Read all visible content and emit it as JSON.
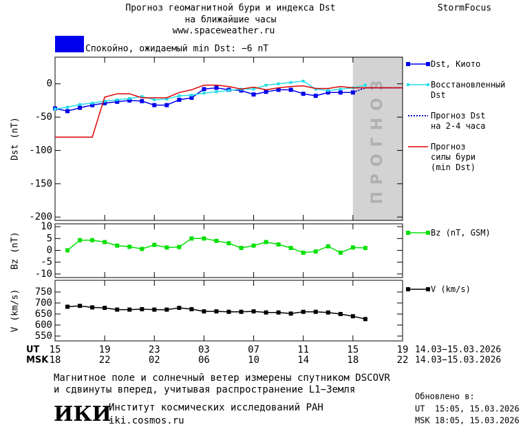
{
  "header": {
    "title": "Прогноз геомагнитной бури и индекса Dst",
    "subtitle": "на ближайшие часы",
    "url": "www.spaceweather.ru",
    "brand": "StormFocus",
    "status": "Спокойно, ожидаемый min Dst: −6 nT",
    "status_color": "#0000ee"
  },
  "chart_data": [
    {
      "type": "line",
      "ylabel": "Dst (nT)",
      "xlim": [
        15,
        43
      ],
      "xticks": [
        15,
        19,
        23,
        27,
        31,
        35,
        39,
        43
      ],
      "ylim": [
        -205,
        40
      ],
      "yticks": [
        0,
        -50,
        -100,
        -150,
        -200
      ],
      "forecast_xlim": [
        39,
        43
      ],
      "forecast_label": "ПРОГНОЗ",
      "series": [
        {
          "name": "Dst, Киото",
          "color": "#0000ee",
          "marker": "square",
          "style": "solid",
          "x": [
            15,
            16,
            17,
            18,
            19,
            20,
            21,
            22,
            23,
            24,
            25,
            26,
            27,
            28,
            29,
            30,
            31,
            32,
            33,
            34,
            35,
            36,
            37,
            38,
            39
          ],
          "values": [
            -37,
            -41,
            -36,
            -32,
            -29,
            -27,
            -25,
            -26,
            -32,
            -32,
            -24,
            -21,
            -8,
            -6,
            -9,
            -10,
            -16,
            -12,
            -9,
            -9,
            -15,
            -18,
            -13,
            -13,
            -13
          ]
        },
        {
          "name": "Восстановленный\nDst",
          "color": "#22dde8",
          "marker": "small-square",
          "style": "solid",
          "x": [
            15,
            16,
            17,
            18,
            19,
            20,
            21,
            22,
            23,
            24,
            25,
            26,
            27,
            28,
            29,
            30,
            31,
            32,
            33,
            34,
            35,
            36,
            37,
            38,
            39,
            40
          ],
          "values": [
            -38,
            -35,
            -31,
            -29,
            -26,
            -24,
            -22,
            -19,
            -24,
            -23,
            -18,
            -17,
            -14,
            -12,
            -10,
            -8,
            -8,
            -2,
            0,
            2,
            4,
            -8,
            -10,
            -8,
            -6,
            -2
          ]
        },
        {
          "name": "Прогноз Dst\nна 2-4 часа",
          "color": "#0000cc",
          "marker": "none",
          "style": "dotted",
          "x": [
            39,
            40,
            43
          ],
          "values": [
            -13,
            -6,
            -6
          ]
        },
        {
          "name": "Прогноз\nсилы бури\n(min Dst)",
          "color": "#dd0000",
          "marker": "none",
          "style": "solid",
          "x": [
            15,
            16,
            17,
            18,
            19,
            20,
            21,
            22,
            23,
            24,
            25,
            26,
            27,
            28,
            29,
            30,
            31,
            32,
            33,
            34,
            35,
            36,
            37,
            38,
            39,
            40,
            41,
            42,
            43
          ],
          "values": [
            -80,
            -80,
            -80,
            -80,
            -20,
            -15,
            -15,
            -21,
            -21,
            -21,
            -13,
            -9,
            -2,
            -2,
            -4,
            -8,
            -5,
            -9,
            -6,
            -4,
            -3,
            -7,
            -7,
            -4,
            -6,
            -6,
            -6,
            -6,
            -6
          ]
        }
      ]
    },
    {
      "type": "line",
      "ylabel": "Bz (nT)",
      "xlim": [
        15,
        43
      ],
      "xticks": [
        15,
        19,
        23,
        27,
        31,
        35,
        39,
        43
      ],
      "ylim": [
        -11.5,
        11.2
      ],
      "yticks": [
        10,
        5,
        0,
        -5,
        -10
      ],
      "series": [
        {
          "name": "Bz (nT, GSM)",
          "color": "#00e000",
          "marker": "square",
          "style": "solid",
          "x": [
            16,
            17,
            18,
            19,
            20,
            21,
            22,
            23,
            24,
            25,
            26,
            27,
            28,
            29,
            30,
            31,
            32,
            33,
            34,
            35,
            36,
            37,
            38,
            39,
            40
          ],
          "values": [
            0,
            4.3,
            4.3,
            3.5,
            2,
            1.5,
            0.6,
            2.3,
            1.2,
            1.4,
            5,
            5,
            4,
            3,
            1,
            2,
            3.5,
            2.5,
            1,
            -1,
            -0.5,
            1.7,
            -1,
            1.2,
            1
          ]
        }
      ]
    },
    {
      "type": "line",
      "ylabel": "V (km/s)",
      "xlim": [
        15,
        43
      ],
      "xticks": [
        {
          "value": 15,
          "label": "15"
        },
        {
          "value": 19,
          "label": "19"
        },
        {
          "value": 23,
          "label": "23"
        },
        {
          "value": 27,
          "label": "03"
        },
        {
          "value": 31,
          "label": "07"
        },
        {
          "value": 35,
          "label": "11"
        },
        {
          "value": 39,
          "label": "15"
        },
        {
          "value": 43,
          "label": "19"
        }
      ],
      "xticks_msk": [
        {
          "value": 15,
          "label": "18"
        },
        {
          "value": 19,
          "label": "22"
        },
        {
          "value": 23,
          "label": "02"
        },
        {
          "value": 27,
          "label": "06"
        },
        {
          "value": 31,
          "label": "10"
        },
        {
          "value": 35,
          "label": "14"
        },
        {
          "value": 39,
          "label": "18"
        },
        {
          "value": 43,
          "label": "22"
        }
      ],
      "xlabel_ut": "UT",
      "xlabel_msk": "MSK",
      "range_ut": "14.03−15.03.2026",
      "range_msk": "14.03−15.03.2026",
      "ylim": [
        528,
        803
      ],
      "yticks": [
        750,
        700,
        650,
        600,
        550
      ],
      "series": [
        {
          "name": "V (km/s)",
          "color": "#000000",
          "marker": "square",
          "style": "solid",
          "x": [
            16,
            17,
            18,
            19,
            20,
            21,
            22,
            23,
            24,
            25,
            26,
            27,
            28,
            29,
            30,
            31,
            32,
            33,
            34,
            35,
            36,
            37,
            38,
            39,
            40
          ],
          "values": [
            683,
            687,
            680,
            678,
            670,
            670,
            672,
            670,
            670,
            678,
            672,
            662,
            662,
            660,
            660,
            662,
            657,
            657,
            652,
            660,
            660,
            657,
            650,
            640,
            627
          ]
        }
      ]
    }
  ],
  "footer": {
    "note_1": "Магнитное поле и солнечный ветер измерены спутником DSCOVR",
    "note_2": "и сдвинуты вперед, учитывая распространение L1−Земля",
    "logo": "ИКИ",
    "institute": "Институт космических исследований РАН",
    "site": "iki.cosmos.ru",
    "updated_title": "Обновлено в:",
    "updated_ut": "UT  15:05, 15.03.2026",
    "updated_msk": "MSK 18:05, 15.03.2026"
  }
}
